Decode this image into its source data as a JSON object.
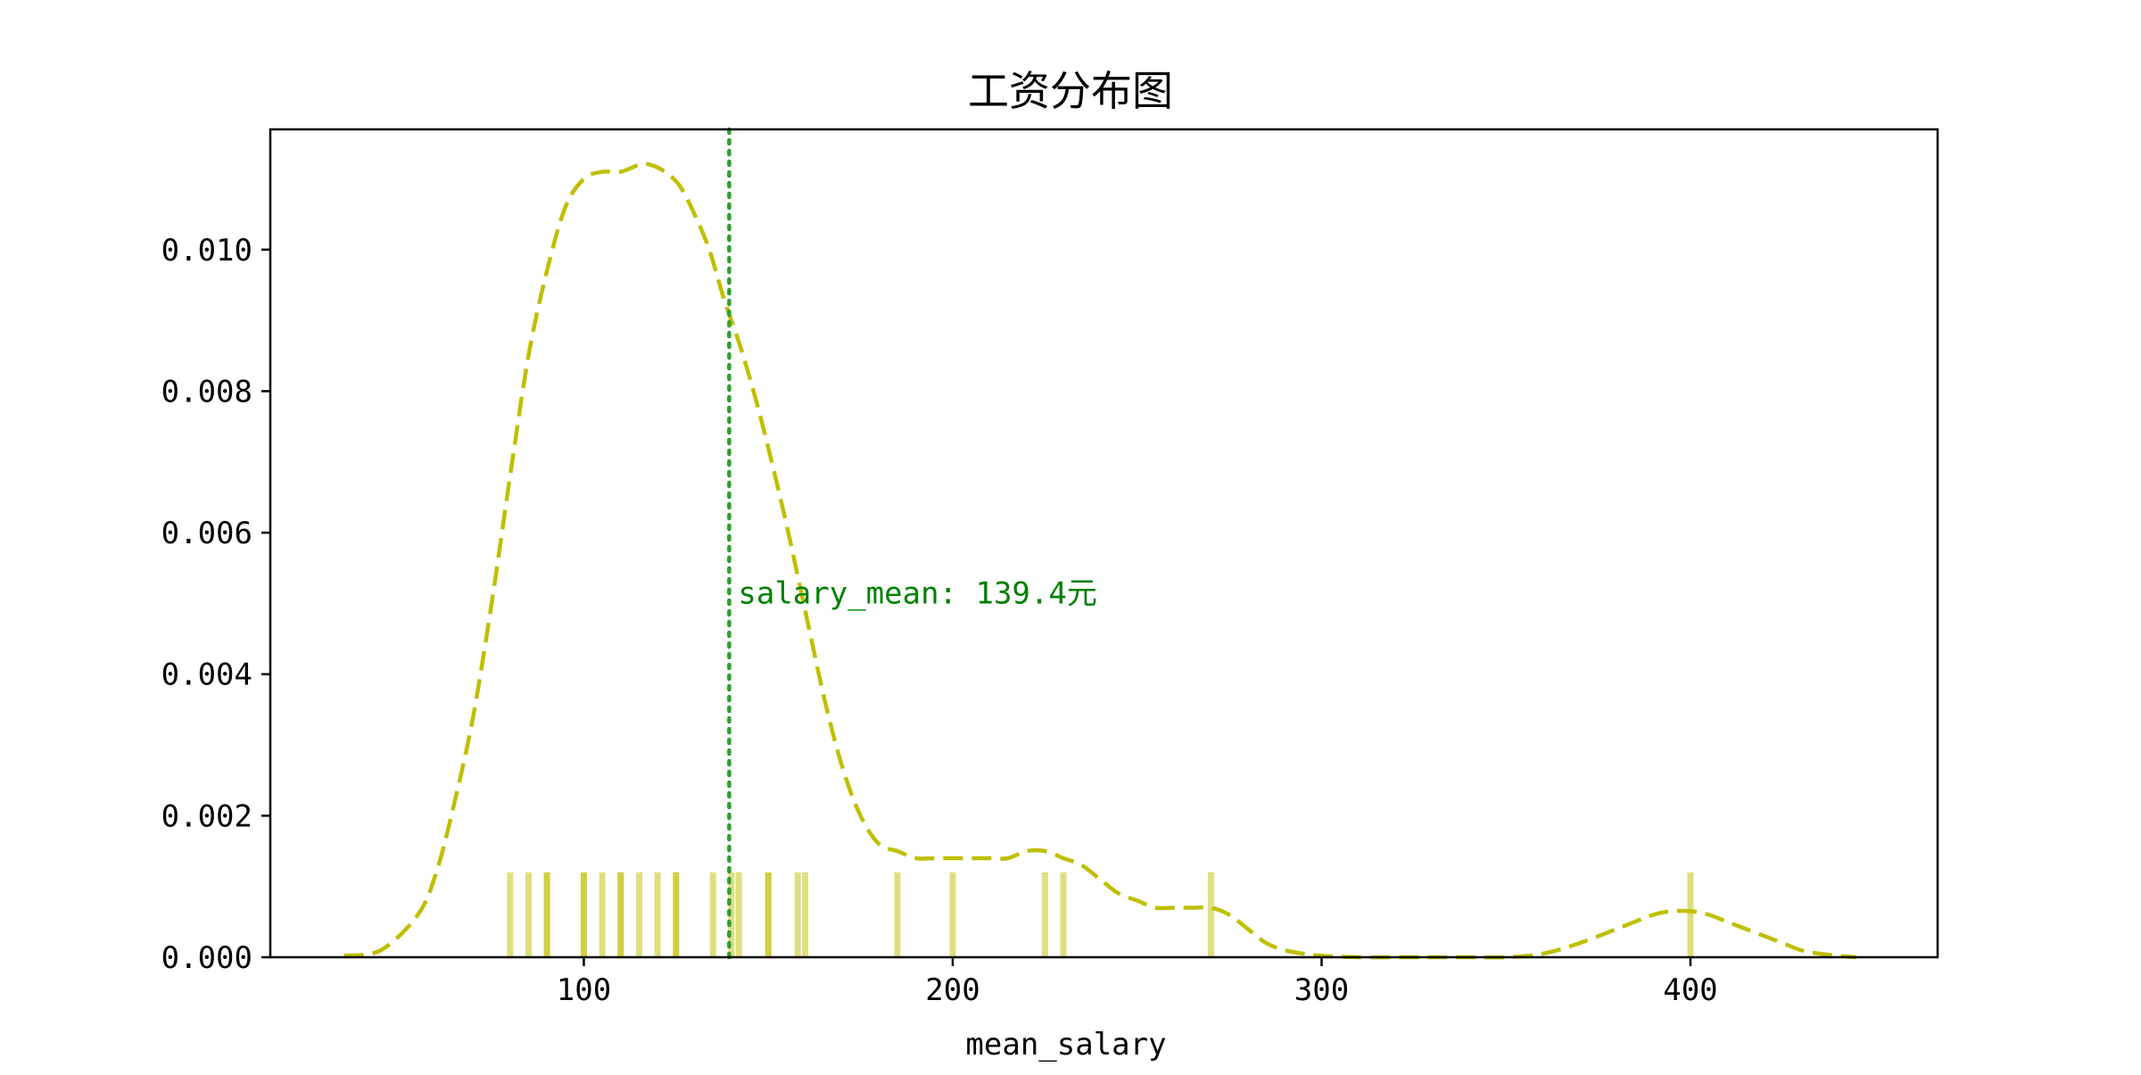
{
  "chart_data": {
    "type": "line",
    "title": "工资分布图",
    "xlabel": "mean_salary",
    "ylabel": "",
    "xlim": [
      15,
      467
    ],
    "ylim": [
      0,
      0.0117
    ],
    "x_ticks": [
      {
        "value": 100,
        "label": "100"
      },
      {
        "value": 200,
        "label": "200"
      },
      {
        "value": 300,
        "label": "300"
      },
      {
        "value": 400,
        "label": "400"
      }
    ],
    "y_ticks": [
      {
        "value": 0.0,
        "label": "0.000"
      },
      {
        "value": 0.002,
        "label": "0.002"
      },
      {
        "value": 0.004,
        "label": "0.004"
      },
      {
        "value": 0.006,
        "label": "0.006"
      },
      {
        "value": 0.008,
        "label": "0.008"
      },
      {
        "value": 0.01,
        "label": "0.010"
      }
    ],
    "grid": false,
    "series": [
      {
        "kind": "kde",
        "style": "dashed",
        "color": "#bfbf00",
        "x": [
          35,
          45,
          55,
          60,
          65,
          70,
          75,
          80,
          85,
          90,
          95,
          100,
          105,
          110,
          115,
          118,
          122,
          126,
          130,
          134,
          138,
          142,
          146,
          150,
          155,
          160,
          165,
          170,
          175,
          180,
          185,
          190,
          195,
          200,
          205,
          210,
          215,
          220,
          225,
          230,
          235,
          240,
          245,
          250,
          255,
          260,
          265,
          270,
          275,
          280,
          285,
          290,
          295,
          300,
          310,
          320,
          330,
          340,
          350,
          360,
          370,
          380,
          390,
          395,
          400,
          405,
          410,
          415,
          420,
          425,
          430,
          435,
          440,
          445
        ],
        "y": [
          2e-05,
          0.0001,
          0.0006,
          0.0012,
          0.0022,
          0.0034,
          0.005,
          0.0068,
          0.0085,
          0.0097,
          0.0106,
          0.011,
          0.0111,
          0.0111,
          0.0112,
          0.0112,
          0.0111,
          0.0109,
          0.0105,
          0.01,
          0.0093,
          0.0087,
          0.008,
          0.0072,
          0.0061,
          0.0049,
          0.0037,
          0.0027,
          0.002,
          0.0016,
          0.0015,
          0.0014,
          0.0014,
          0.0014,
          0.0014,
          0.0014,
          0.0014,
          0.0015,
          0.0015,
          0.0014,
          0.0013,
          0.0011,
          0.0009,
          0.0008,
          0.0007,
          0.0007,
          0.0007,
          0.0007,
          0.0006,
          0.0004,
          0.0002,
          0.0001,
          5e-05,
          2e-05,
          0.0,
          0.0,
          0.0,
          0.0,
          0.0,
          5e-05,
          0.0002,
          0.0004,
          0.0006,
          0.00065,
          0.00065,
          0.0006,
          0.0005,
          0.0004,
          0.0003,
          0.0002,
          0.0001,
          5e-05,
          2e-05,
          0.0
        ]
      }
    ],
    "rug": {
      "color": "#bfbf00",
      "height": 0.0012,
      "values": [
        80,
        85,
        90,
        90,
        100,
        100,
        105,
        110,
        110,
        115,
        120,
        125,
        125,
        135,
        140,
        142,
        150,
        150,
        158,
        160,
        185,
        200,
        225,
        230,
        270,
        400
      ]
    },
    "mean_line": {
      "value": 139.4,
      "color": "#2ca02c",
      "style": "dotted",
      "label": "salary_mean: 139.4元",
      "label_y": 0.0051
    },
    "legend": "none"
  }
}
